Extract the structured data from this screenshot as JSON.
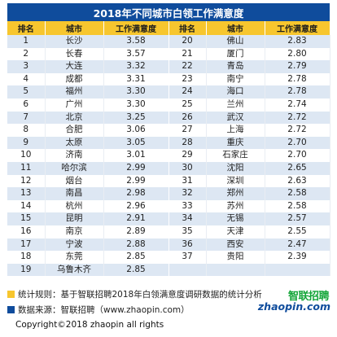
{
  "title": "2018年不同城市白领工作满意度",
  "headers": [
    "排名",
    "城市",
    "工作满意度",
    "排名",
    "城市",
    "工作满意度"
  ],
  "left_rows": [
    {
      "rank": "1",
      "city": "长沙",
      "score": "3.58"
    },
    {
      "rank": "2",
      "city": "长春",
      "score": "3.57"
    },
    {
      "rank": "3",
      "city": "大连",
      "score": "3.32"
    },
    {
      "rank": "4",
      "city": "成都",
      "score": "3.31"
    },
    {
      "rank": "5",
      "city": "福州",
      "score": "3.30"
    },
    {
      "rank": "6",
      "city": "广州",
      "score": "3.30"
    },
    {
      "rank": "7",
      "city": "北京",
      "score": "3.25"
    },
    {
      "rank": "8",
      "city": "合肥",
      "score": "3.06"
    },
    {
      "rank": "9",
      "city": "太原",
      "score": "3.05"
    },
    {
      "rank": "10",
      "city": "济南",
      "score": "3.01"
    },
    {
      "rank": "11",
      "city": "哈尔滨",
      "score": "2.99"
    },
    {
      "rank": "12",
      "city": "烟台",
      "score": "2.99"
    },
    {
      "rank": "13",
      "city": "南昌",
      "score": "2.98"
    },
    {
      "rank": "14",
      "city": "杭州",
      "score": "2.96"
    },
    {
      "rank": "15",
      "city": "昆明",
      "score": "2.91"
    },
    {
      "rank": "16",
      "city": "南京",
      "score": "2.89"
    },
    {
      "rank": "17",
      "city": "宁波",
      "score": "2.88"
    },
    {
      "rank": "18",
      "city": "东莞",
      "score": "2.85"
    },
    {
      "rank": "19",
      "city": "乌鲁木齐",
      "score": "2.85"
    }
  ],
  "right_rows": [
    {
      "rank": "20",
      "city": "佛山",
      "score": "2.83"
    },
    {
      "rank": "21",
      "city": "厦门",
      "score": "2.80"
    },
    {
      "rank": "22",
      "city": "青岛",
      "score": "2.79"
    },
    {
      "rank": "23",
      "city": "南宁",
      "score": "2.78"
    },
    {
      "rank": "24",
      "city": "海口",
      "score": "2.78"
    },
    {
      "rank": "25",
      "city": "兰州",
      "score": "2.74"
    },
    {
      "rank": "26",
      "city": "武汉",
      "score": "2.72"
    },
    {
      "rank": "27",
      "city": "上海",
      "score": "2.72"
    },
    {
      "rank": "28",
      "city": "重庆",
      "score": "2.70"
    },
    {
      "rank": "29",
      "city": "石家庄",
      "score": "2.70"
    },
    {
      "rank": "30",
      "city": "沈阳",
      "score": "2.65"
    },
    {
      "rank": "31",
      "city": "深圳",
      "score": "2.63"
    },
    {
      "rank": "32",
      "city": "郑州",
      "score": "2.58"
    },
    {
      "rank": "33",
      "city": "苏州",
      "score": "2.58"
    },
    {
      "rank": "34",
      "city": "无锡",
      "score": "2.57"
    },
    {
      "rank": "35",
      "city": "天津",
      "score": "2.55"
    },
    {
      "rank": "36",
      "city": "西安",
      "score": "2.47"
    },
    {
      "rank": "37",
      "city": "贵阳",
      "score": "2.39"
    }
  ],
  "notes": {
    "rule": "统计规则：基于智联招聘2018年白领满意度调研数据的统计分析",
    "source": "数据来源：智联招聘（www.zhaopin.com）"
  },
  "logo": {
    "cn": "智联招聘",
    "en": "zhaopin.com"
  },
  "copyright": "Copyright©2018 zhaopin all rights",
  "colors": {
    "title_bg": "#0f4c9c",
    "header_bg": "#f7c62e",
    "stripe": "#dde7f3",
    "logo_green": "#13a538",
    "logo_blue": "#0f4c9c"
  }
}
